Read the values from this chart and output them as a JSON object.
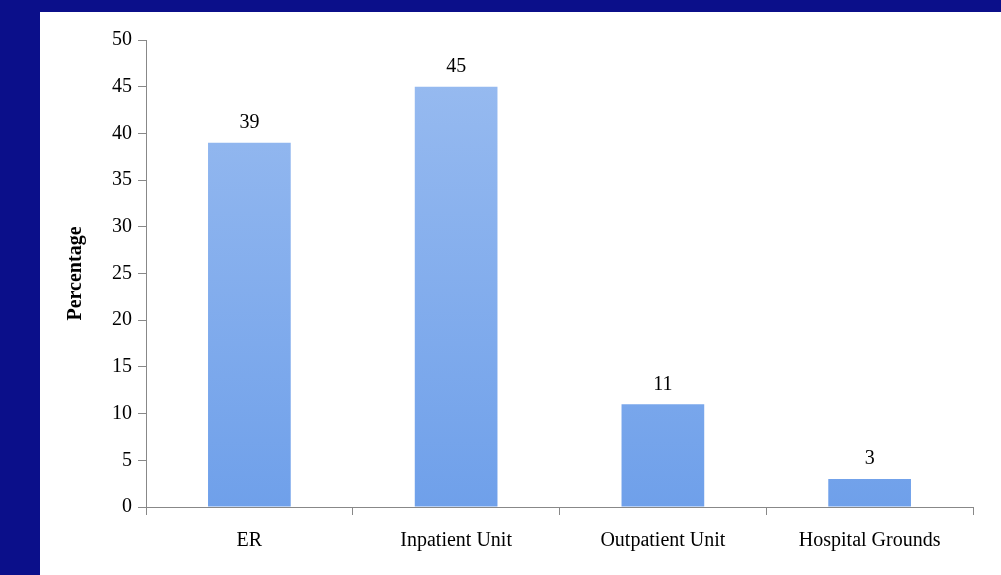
{
  "chart_data": {
    "type": "bar",
    "ylabel": "Percentage",
    "categories": [
      "ER",
      "Inpatient Unit",
      "Outpatient Unit",
      "Hospital Grounds"
    ],
    "values": [
      39,
      45,
      11,
      3
    ],
    "color": "#6fa0ea",
    "ylim": [
      0,
      50
    ],
    "yticks": [
      0,
      5,
      10,
      15,
      20,
      25,
      30,
      35,
      40,
      45,
      50
    ],
    "grid": false,
    "legend": false,
    "data_labels": true
  }
}
